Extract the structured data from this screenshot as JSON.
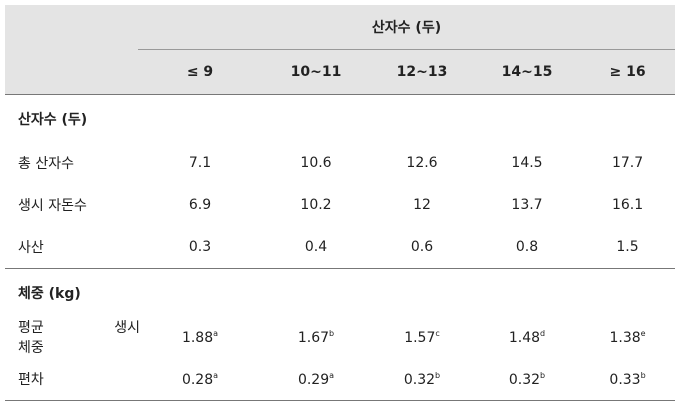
{
  "table": {
    "header": {
      "group": "산자수 (두)",
      "columns": [
        "≤ 9",
        "10~11",
        "12~13",
        "14~15",
        "≥ 16"
      ]
    },
    "sections": [
      {
        "title": "산자수 (두)",
        "rows": [
          {
            "label": [
              "총 산자수"
            ],
            "cells": [
              {
                "value": "7.1"
              },
              {
                "value": "10.6"
              },
              {
                "value": "12.6"
              },
              {
                "value": "14.5"
              },
              {
                "value": "17.7"
              }
            ]
          },
          {
            "label": [
              "생시 자돈수"
            ],
            "cells": [
              {
                "value": "6.9"
              },
              {
                "value": "10.2"
              },
              {
                "value": "12"
              },
              {
                "value": "13.7"
              },
              {
                "value": "16.1"
              }
            ]
          },
          {
            "label": [
              "사산"
            ],
            "cells": [
              {
                "value": "0.3"
              },
              {
                "value": "0.4"
              },
              {
                "value": "0.6"
              },
              {
                "value": "0.8"
              },
              {
                "value": "1.5"
              }
            ]
          }
        ]
      },
      {
        "title": "체중 (kg)",
        "rows": [
          {
            "label": [
              "평균 생시",
              "체중"
            ],
            "cells": [
              {
                "value": "1.88",
                "sup": "a"
              },
              {
                "value": "1.67",
                "sup": "b"
              },
              {
                "value": "1.57",
                "sup": "c"
              },
              {
                "value": "1.48",
                "sup": "d"
              },
              {
                "value": "1.38",
                "sup": "e"
              }
            ]
          },
          {
            "label": [
              "편차"
            ],
            "cells": [
              {
                "value": "0.28",
                "sup": "a"
              },
              {
                "value": "0.29",
                "sup": "a"
              },
              {
                "value": "0.32",
                "sup": "b"
              },
              {
                "value": "0.32",
                "sup": "b"
              },
              {
                "value": "0.33",
                "sup": "b"
              }
            ]
          }
        ]
      }
    ]
  }
}
